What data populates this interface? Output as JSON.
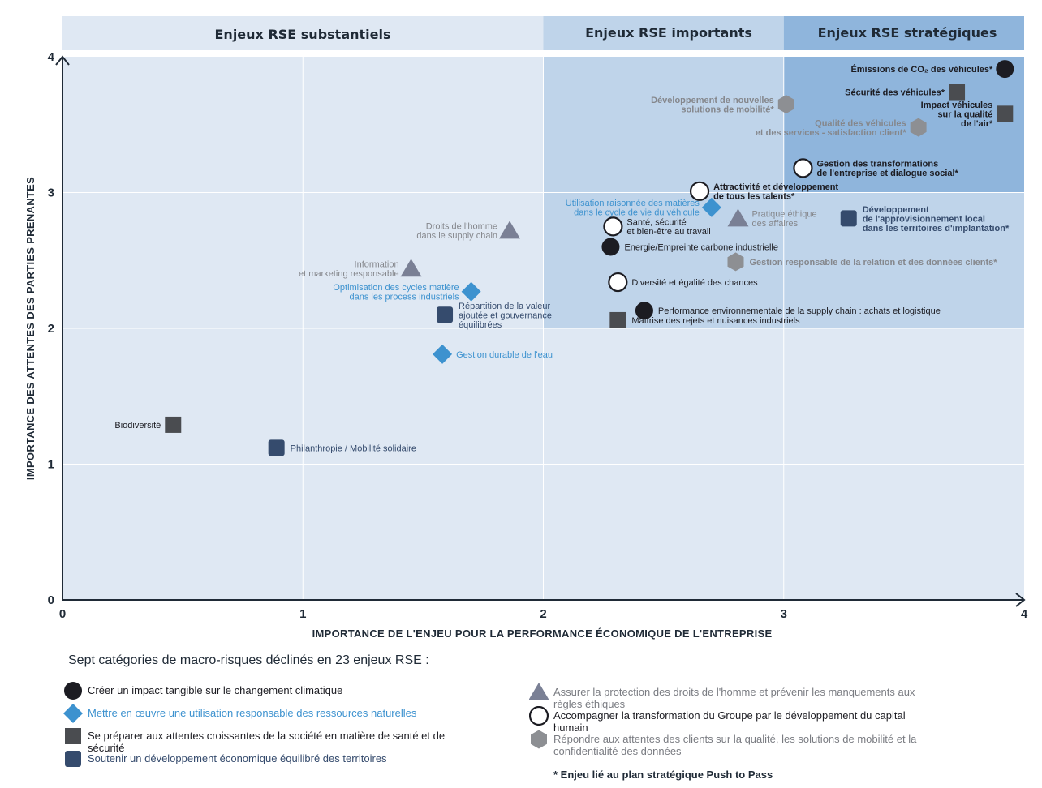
{
  "colors": {
    "climat": "#1c1c22",
    "ressources": "#3d92cf",
    "sante": "#4a4c50",
    "territoires": "#354b6d",
    "droits": "#7a8095",
    "capital": "#1c1c22",
    "clients": "#8d8f93",
    "band_substantiels": "#dfe8f3",
    "band_importants": "#bfd4ea",
    "band_strategiques": "#8fb5dc"
  },
  "bands": {
    "substantiels": "Enjeux RSE substantiels",
    "importants": "Enjeux RSE importants",
    "strategiques": "Enjeux RSE stratégiques"
  },
  "chart_data": {
    "type": "scatter",
    "xlabel": "IMPORTANCE DE L'ENJEU POUR LA PERFORMANCE ÉCONOMIQUE DE L'ENTREPRISE",
    "ylabel": "IMPORTANCE DES ATTENTES DES PARTIES PRENANTES",
    "xlim": [
      0,
      4
    ],
    "ylim": [
      0,
      4
    ],
    "xticks": [
      "0",
      "1",
      "2",
      "3",
      "4"
    ],
    "yticks": [
      "0",
      "1",
      "2",
      "3",
      "4"
    ],
    "grid": true,
    "points": [
      {
        "id": "emissions",
        "category": "climat",
        "x": 3.92,
        "y": 3.91,
        "label": [
          "Émissions de CO₂ des véhicules*"
        ],
        "bold": true,
        "anchor": "end"
      },
      {
        "id": "securite",
        "category": "sante",
        "x": 3.72,
        "y": 3.74,
        "label": [
          "Sécurité des véhicules*"
        ],
        "bold": true,
        "anchor": "end"
      },
      {
        "id": "air",
        "category": "sante",
        "x": 3.92,
        "y": 3.58,
        "label": [
          "Impact véhicules",
          "sur la qualité",
          "de l'air*"
        ],
        "bold": true,
        "anchor": "end"
      },
      {
        "id": "mobilite",
        "category": "clients",
        "x": 3.01,
        "y": 3.65,
        "label": [
          "Développement de nouvelles",
          "solutions de mobilité*"
        ],
        "bold": true,
        "anchor": "end"
      },
      {
        "id": "qualite",
        "category": "clients",
        "x": 3.56,
        "y": 3.48,
        "label": [
          "Qualité des véhicules",
          "et des services - satisfaction client*"
        ],
        "bold": true,
        "anchor": "end"
      },
      {
        "id": "transformations",
        "category": "capital",
        "x": 3.08,
        "y": 3.18,
        "label": [
          "Gestion des transformations",
          "de l'entreprise et dialogue social*"
        ],
        "bold": true,
        "anchor": "start"
      },
      {
        "id": "attractivite",
        "category": "capital",
        "x": 2.65,
        "y": 3.01,
        "label": [
          "Attractivité et développement",
          "de tous les talents*"
        ],
        "bold": true,
        "anchor": "start"
      },
      {
        "id": "matieres_vie",
        "category": "ressources",
        "x": 2.7,
        "y": 2.89,
        "label": [
          "Utilisation raisonnée des matières",
          "dans le cycle de vie du véhicule"
        ],
        "bold": false,
        "anchor": "end"
      },
      {
        "id": "ethique",
        "category": "droits",
        "x": 2.81,
        "y": 2.81,
        "label": [
          "Pratique éthique",
          "des affaires"
        ],
        "bold": false,
        "anchor": "start"
      },
      {
        "id": "approvisionnement",
        "category": "territoires",
        "x": 3.27,
        "y": 2.81,
        "label": [
          "Développement",
          "de l'approvisionnement local",
          "dans les territoires d'implantation*"
        ],
        "bold": true,
        "anchor": "start"
      },
      {
        "id": "sante_travail",
        "category": "capital",
        "x": 2.29,
        "y": 2.75,
        "label": [
          "Santé, sécurité",
          "et bien-être au travail"
        ],
        "bold": false,
        "anchor": "start"
      },
      {
        "id": "energie",
        "category": "climat",
        "x": 2.28,
        "y": 2.6,
        "label": [
          "Energie/Empreinte carbone industrielle"
        ],
        "bold": false,
        "anchor": "start"
      },
      {
        "id": "relation_clients",
        "category": "clients",
        "x": 2.8,
        "y": 2.49,
        "label": [
          "Gestion responsable de la relation et des données clients*"
        ],
        "bold": true,
        "anchor": "start"
      },
      {
        "id": "diversite",
        "category": "capital",
        "x": 2.31,
        "y": 2.34,
        "label": [
          "Diversité et égalité des chances"
        ],
        "bold": false,
        "anchor": "start"
      },
      {
        "id": "supply_env",
        "category": "climat",
        "x": 2.42,
        "y": 2.13,
        "label": [
          "Performance environnementale de la supply chain : achats et logistique"
        ],
        "bold": false,
        "anchor": "start"
      },
      {
        "id": "rejets",
        "category": "sante",
        "x": 2.31,
        "y": 2.06,
        "label": [
          "Maîtrise des rejets et nuisances industriels"
        ],
        "bold": false,
        "anchor": "start"
      },
      {
        "id": "droits_homme",
        "category": "droits",
        "x": 1.86,
        "y": 2.72,
        "label": [
          "Droits de l'homme",
          "dans le supply chain"
        ],
        "bold": false,
        "anchor": "end"
      },
      {
        "id": "information",
        "category": "droits",
        "x": 1.45,
        "y": 2.44,
        "label": [
          "Information",
          "et marketing responsable"
        ],
        "bold": false,
        "anchor": "end"
      },
      {
        "id": "cycles_matiere",
        "category": "ressources",
        "x": 1.7,
        "y": 2.27,
        "label": [
          "Optimisation des cycles matière",
          "dans les process industriels"
        ],
        "bold": false,
        "anchor": "end"
      },
      {
        "id": "repartition",
        "category": "territoires",
        "x": 1.59,
        "y": 2.1,
        "label": [
          "Répartition de la valeur",
          "ajoutée et gouvernance",
          "équilibrées"
        ],
        "bold": false,
        "anchor": "start"
      },
      {
        "id": "eau",
        "category": "ressources",
        "x": 1.58,
        "y": 1.81,
        "label": [
          "Gestion durable de l'eau"
        ],
        "bold": false,
        "anchor": "start"
      },
      {
        "id": "biodiversite",
        "category": "sante",
        "x": 0.46,
        "y": 1.29,
        "label": [
          "Biodiversité"
        ],
        "bold": false,
        "anchor": "end"
      },
      {
        "id": "philanthropie",
        "category": "territoires",
        "x": 0.89,
        "y": 1.12,
        "label": [
          "Philanthropie / Mobilité solidaire"
        ],
        "bold": false,
        "anchor": "start"
      }
    ]
  },
  "legend": {
    "title": "Sept catégories de macro-risques déclinés en 23 enjeux RSE :",
    "items": [
      {
        "category": "climat",
        "label": "Créer un impact tangible sur le changement climatique"
      },
      {
        "category": "ressources",
        "label": "Mettre en œuvre une utilisation responsable des ressources naturelles"
      },
      {
        "category": "sante",
        "label": "Se préparer aux attentes croissantes de la société en matière de santé et de sécurité"
      },
      {
        "category": "territoires",
        "label": "Soutenir un développement économique équilibré des territoires"
      },
      {
        "category": "droits",
        "label": "Assurer la protection des droits de l'homme et prévenir les manquements aux règles éthiques"
      },
      {
        "category": "capital",
        "label": "Accompagner la transformation du Groupe par le développement du capital humain"
      },
      {
        "category": "clients",
        "label": "Répondre aux attentes des clients sur la qualité, les solutions de mobilité et la confidentialité des données"
      }
    ],
    "footnote": "* Enjeu lié au plan stratégique Push to Pass"
  },
  "shapes": {
    "climat": "circle-filled",
    "ressources": "diamond",
    "sante": "square",
    "territoires": "rounded-square",
    "droits": "triangle",
    "capital": "circle-outline",
    "clients": "hexagon"
  }
}
